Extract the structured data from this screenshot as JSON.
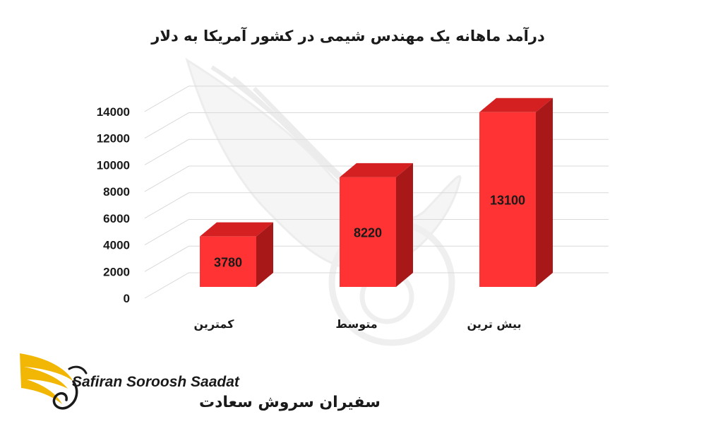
{
  "chart_data": {
    "type": "bar",
    "title": "درآمد ماهانه یک مهندس شیمی در کشور آمریکا به دلار",
    "categories": [
      "کمترین",
      "متوسط",
      "بیش ترین"
    ],
    "values": [
      3780,
      8220,
      13100
    ],
    "data_labels": [
      "3780",
      "8220",
      "13100"
    ],
    "ylim": [
      0,
      14000
    ],
    "yticks": [
      0,
      2000,
      4000,
      6000,
      8000,
      10000,
      12000,
      14000
    ],
    "ytick_labels": [
      "0",
      "2000",
      "4000",
      "6000",
      "8000",
      "10000",
      "12000",
      "14000"
    ],
    "grid": true,
    "style": "3d",
    "bar_front_color": "#ff3333",
    "bar_top_color": "#d42020",
    "bar_side_color": "#a81818",
    "grid_color": "#d9d9d9"
  },
  "branding": {
    "name_en": "Safiran Soroosh Saadat",
    "name_fa": "سفیران سروش سعادت",
    "logo_icon": "golden-wing-icon",
    "gold_color": "#f2b705"
  }
}
